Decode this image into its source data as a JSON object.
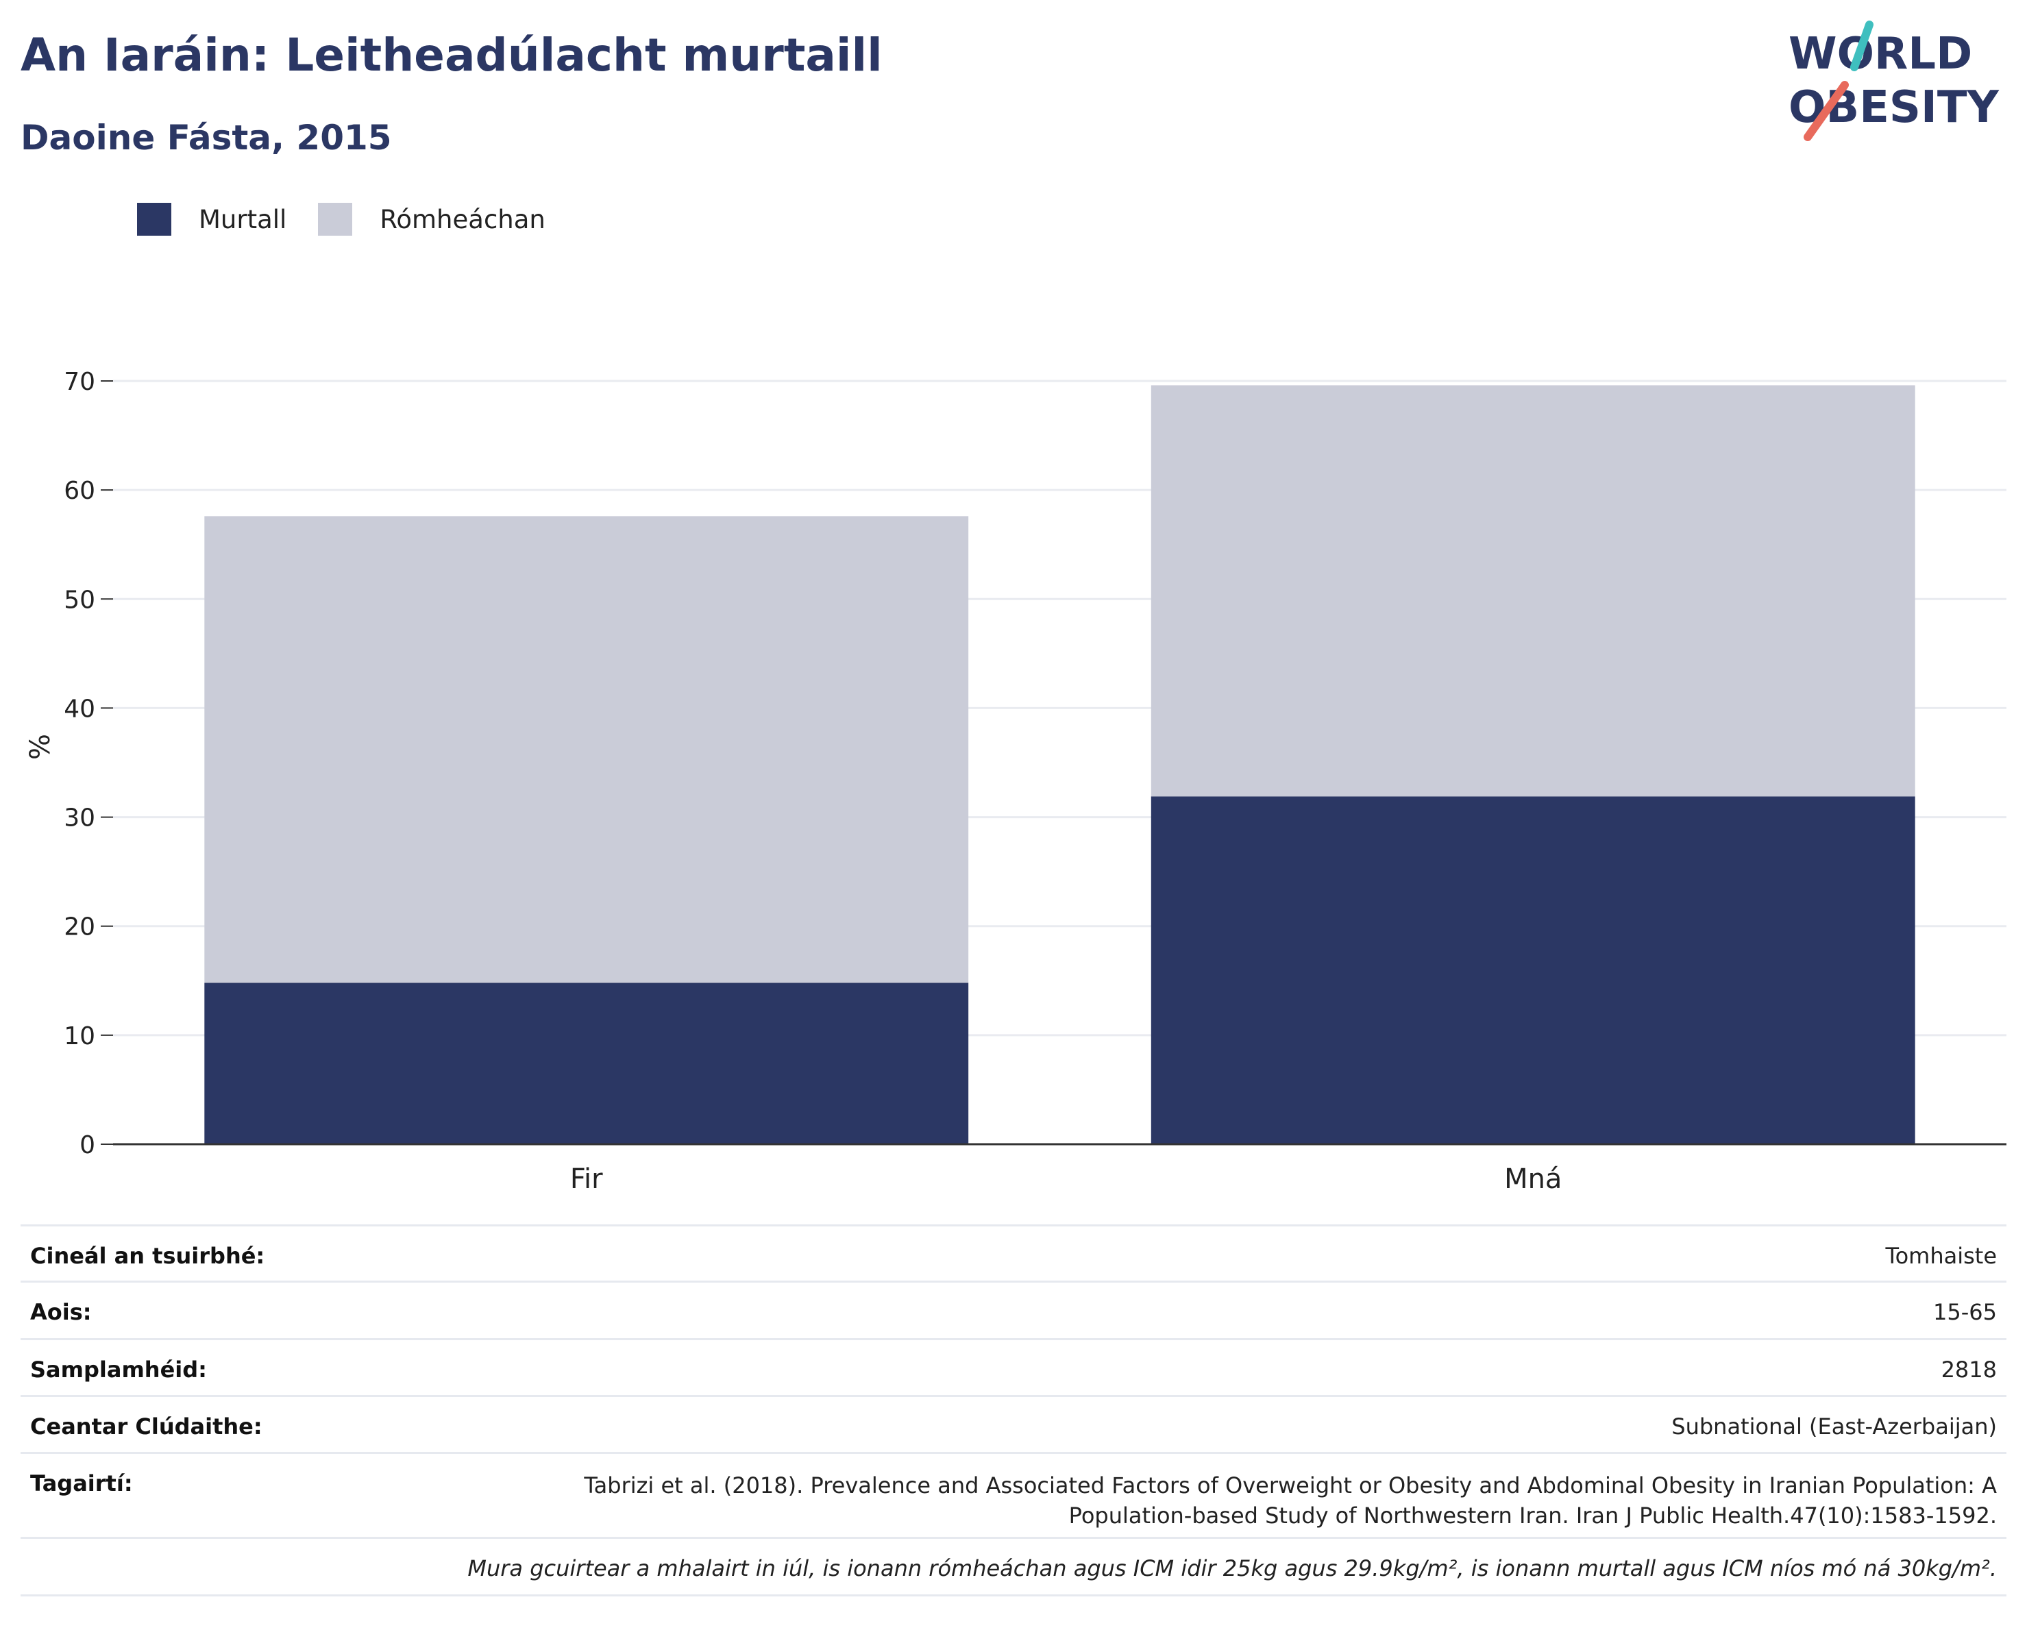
{
  "header": {
    "title": "An Iaráin: Leitheadúlacht murtaill",
    "subtitle": "Daoine Fásta, 2015"
  },
  "logo": {
    "line1": "WORLD",
    "line2": "OBESITY",
    "colors": {
      "text": "#2b3764",
      "teal": "#3fbfbf",
      "coral": "#e86a5c"
    }
  },
  "colors": {
    "obese": "#2b3764",
    "overweight": "#caccd8",
    "grid": "#e9ebf0",
    "axis": "#333333"
  },
  "chart_data": {
    "type": "bar",
    "stacked": true,
    "categories": [
      "Fir",
      "Mná"
    ],
    "series": [
      {
        "name": "Murtall",
        "values": [
          14.8,
          31.9
        ],
        "color": "#2b3764"
      },
      {
        "name": "Rómheáchan",
        "values": [
          42.8,
          37.7
        ],
        "color": "#caccd8"
      }
    ],
    "ylabel": "%",
    "ylim": [
      0,
      70
    ],
    "yticks": [
      "0",
      "10",
      "20",
      "30",
      "40",
      "50",
      "60",
      "70"
    ],
    "grid": true,
    "legend_position": "top-left"
  },
  "meta": {
    "rows": [
      {
        "key": "Cineál an tsuirbhé:",
        "value": "Tomhaiste"
      },
      {
        "key": "Aois:",
        "value": "15-65"
      },
      {
        "key": "Samplamhéid:",
        "value": "2818"
      },
      {
        "key": "Ceantar Clúdaithe:",
        "value": "Subnational (East-Azerbaijan)"
      }
    ],
    "reference_key": "Tagairtí:",
    "reference_value": "Tabrizi et al. (2018). Prevalence and Associated Factors of Overweight or Obesity and Abdominal Obesity in Iranian Population: A Population-based Study of Northwestern Iran. Iran J Public Health.47(10):1583-1592.",
    "note": "Mura gcuirtear a mhalairt in iúl, is ionann rómheáchan agus ICM idir 25kg agus 29.9kg/m², is ionann murtall agus ICM níos mó ná 30kg/m²."
  }
}
